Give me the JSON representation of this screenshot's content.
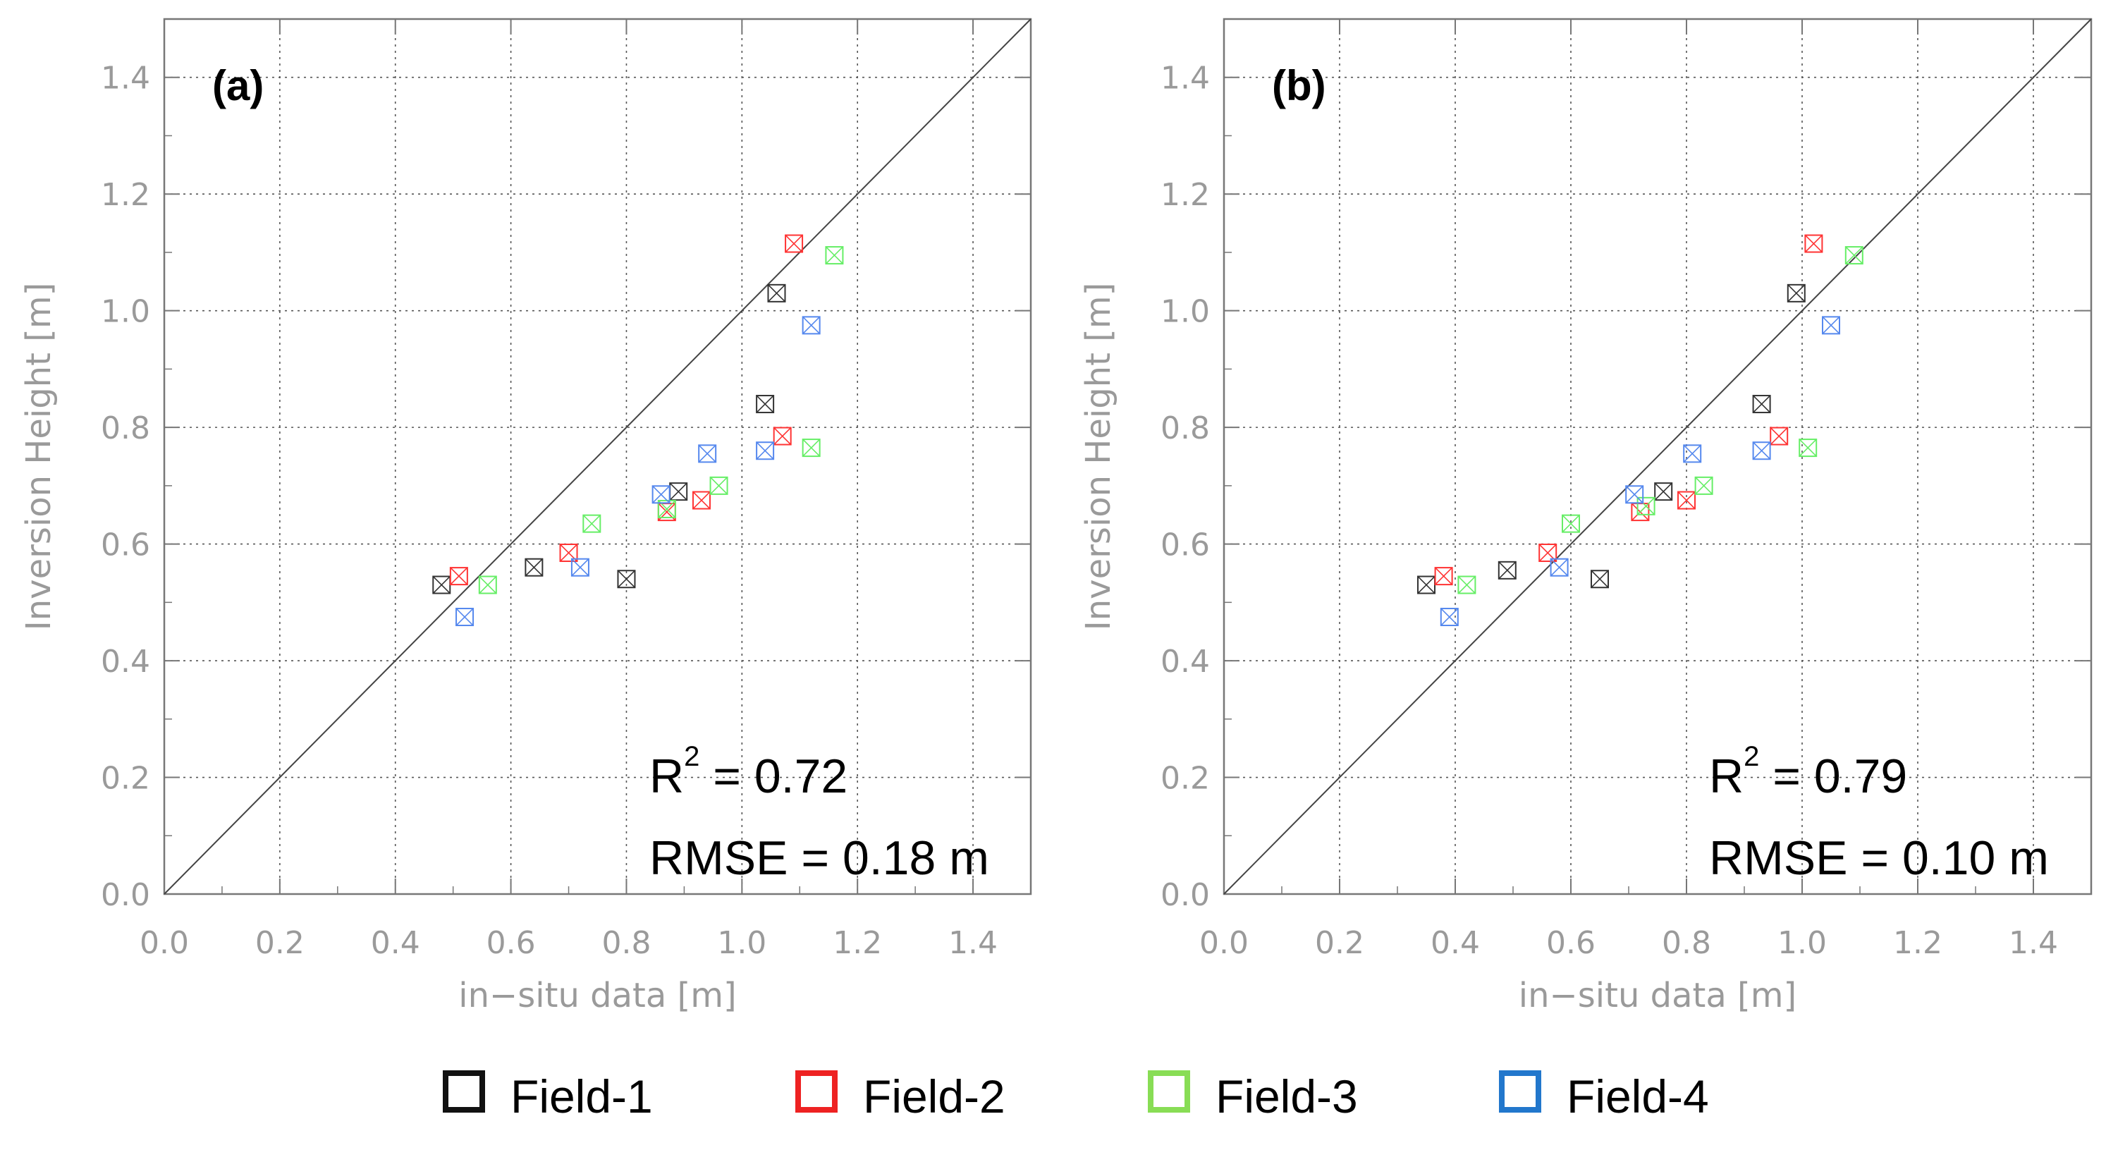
{
  "chart_data": [
    {
      "type": "scatter",
      "panel_label": "(a)",
      "xlabel": "in−situ data [m]",
      "ylabel": "Inversion Height [m]",
      "xlim": [
        0.0,
        1.5
      ],
      "ylim": [
        0.0,
        1.5
      ],
      "xticks": [
        "0.0",
        "0.2",
        "0.4",
        "0.6",
        "0.8",
        "1.0",
        "1.2",
        "1.4"
      ],
      "yticks": [
        "0.0",
        "0.2",
        "0.4",
        "0.6",
        "0.8",
        "1.0",
        "1.2",
        "1.4"
      ],
      "grid": true,
      "reference_line": "1:1",
      "r2_prefix": "R",
      "r2_sup": "2",
      "r2_value": " = 0.72",
      "rmse_text": "RMSE = 0.18 m",
      "series": [
        {
          "name": "Field-1",
          "x": [
            0.48,
            0.64,
            0.8,
            0.89,
            1.04,
            1.06
          ],
          "y": [
            0.53,
            0.56,
            0.54,
            0.69,
            0.84,
            1.03
          ]
        },
        {
          "name": "Field-2",
          "x": [
            0.51,
            0.7,
            0.87,
            0.93,
            1.07,
            1.09
          ],
          "y": [
            0.545,
            0.585,
            0.655,
            0.675,
            0.785,
            1.115
          ]
        },
        {
          "name": "Field-3",
          "x": [
            0.56,
            0.74,
            0.87,
            0.96,
            1.12,
            1.16
          ],
          "y": [
            0.53,
            0.635,
            0.66,
            0.7,
            0.765,
            1.095
          ]
        },
        {
          "name": "Field-4",
          "x": [
            0.52,
            0.72,
            0.86,
            0.94,
            1.04,
            1.12
          ],
          "y": [
            0.475,
            0.56,
            0.685,
            0.755,
            0.76,
            0.975
          ]
        }
      ]
    },
    {
      "type": "scatter",
      "panel_label": "(b)",
      "xlabel": "in−situ data [m]",
      "ylabel": "Inversion Height [m]",
      "xlim": [
        0.0,
        1.5
      ],
      "ylim": [
        0.0,
        1.5
      ],
      "xticks": [
        "0.0",
        "0.2",
        "0.4",
        "0.6",
        "0.8",
        "1.0",
        "1.2",
        "1.4"
      ],
      "yticks": [
        "0.0",
        "0.2",
        "0.4",
        "0.6",
        "0.8",
        "1.0",
        "1.2",
        "1.4"
      ],
      "grid": true,
      "reference_line": "1:1",
      "r2_prefix": "R",
      "r2_sup": "2",
      "r2_value": " = 0.79",
      "rmse_text": "RMSE = 0.10 m",
      "series": [
        {
          "name": "Field-1",
          "x": [
            0.35,
            0.49,
            0.65,
            0.76,
            0.93,
            0.99
          ],
          "y": [
            0.53,
            0.555,
            0.54,
            0.69,
            0.84,
            1.03
          ]
        },
        {
          "name": "Field-2",
          "x": [
            0.38,
            0.56,
            0.72,
            0.8,
            0.96,
            1.02
          ],
          "y": [
            0.545,
            0.585,
            0.655,
            0.675,
            0.785,
            1.115
          ]
        },
        {
          "name": "Field-3",
          "x": [
            0.42,
            0.6,
            0.73,
            0.83,
            1.01,
            1.09
          ],
          "y": [
            0.53,
            0.635,
            0.665,
            0.7,
            0.765,
            1.095
          ]
        },
        {
          "name": "Field-4",
          "x": [
            0.39,
            0.58,
            0.71,
            0.81,
            0.93,
            1.05
          ],
          "y": [
            0.475,
            0.56,
            0.685,
            0.755,
            0.76,
            0.975
          ]
        }
      ]
    }
  ],
  "legend": [
    {
      "label": "Field-1",
      "color": "#111111"
    },
    {
      "label": "Field-2",
      "color": "#ee2222"
    },
    {
      "label": "Field-3",
      "color": "#88dd55"
    },
    {
      "label": "Field-4",
      "color": "#2277cc"
    }
  ],
  "marker_colors": [
    "#333333",
    "#ff3333",
    "#66ee66",
    "#5588ee"
  ]
}
